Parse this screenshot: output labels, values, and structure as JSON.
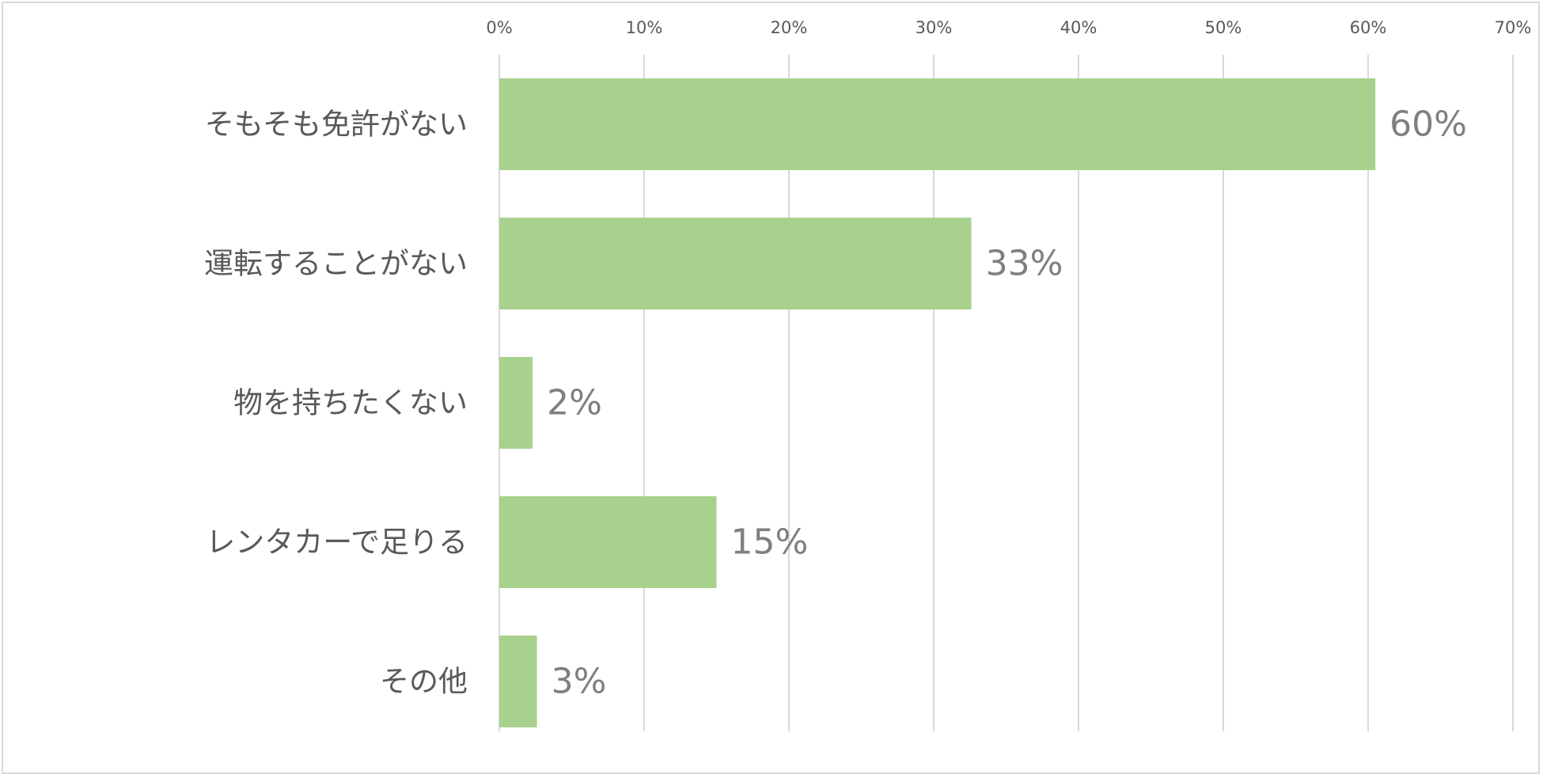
{
  "chart_data": {
    "type": "bar",
    "orientation": "horizontal",
    "categories": [
      "そもそも免許がない",
      "運転することがない",
      "物を持ちたくない",
      "レンタカーで足りる",
      "その他"
    ],
    "values": [
      60.5,
      32.6,
      2.3,
      15.0,
      2.6
    ],
    "data_labels": [
      "60%",
      "33%",
      "2%",
      "15%",
      "3%"
    ],
    "x_ticks": [
      0,
      10,
      20,
      30,
      40,
      50,
      60,
      70
    ],
    "x_tick_labels": [
      "0%",
      "10%",
      "20%",
      "30%",
      "40%",
      "50%",
      "60%",
      "70%"
    ],
    "xlim": [
      0,
      70
    ],
    "x_axis_position": "top",
    "grid": true,
    "title": "",
    "xlabel": "",
    "ylabel": "",
    "colors": {
      "bar": "#a9d18e",
      "grid": "#d9d9d9",
      "text": "#595959",
      "data_label": "#7f7f7f"
    }
  }
}
